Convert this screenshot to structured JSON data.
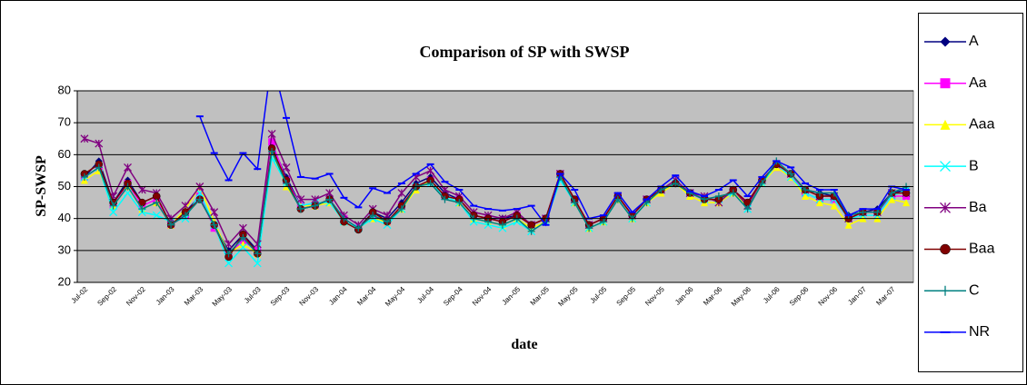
{
  "chart_data": {
    "type": "line",
    "title": "Comparison of SP with SWSP",
    "x_label": "date",
    "y_label": "SP-SWSP",
    "categories": [
      "Jul-02",
      null,
      "Sep-02",
      null,
      "Nov-02",
      null,
      "Jan-03",
      null,
      "Mar-03",
      null,
      "May-03",
      null,
      "Jul-03",
      null,
      "Sep-03",
      null,
      "Nov-03",
      null,
      "Jan-04",
      null,
      "Mar-04",
      null,
      "May-04",
      null,
      "Jul-04",
      null,
      "Sep-04",
      null,
      "Nov-04",
      null,
      "Jan-05",
      null,
      "Mar-05",
      null,
      "May-05",
      null,
      "Jul-05",
      null,
      "Sep-05",
      null,
      "Nov-05",
      null,
      "Jan-06",
      null,
      "Mar-06",
      null,
      "May-06",
      null,
      "Jul-06",
      null,
      "Sep-06",
      null,
      "Nov-06",
      null,
      "Jan-07",
      null,
      "Mar-07",
      null
    ],
    "ylim": [
      20,
      80
    ],
    "yticks": [
      20,
      30,
      40,
      50,
      60,
      70,
      80
    ],
    "grid": true,
    "legend": "right",
    "series": [
      {
        "name": "A",
        "color": "#000080",
        "marker": "diamond",
        "values": [
          53,
          58,
          45,
          52,
          45,
          47,
          38,
          42,
          47,
          38,
          30,
          35,
          30,
          63,
          53,
          44,
          44,
          46,
          40,
          37,
          42,
          40,
          45,
          51,
          53,
          48,
          46,
          41,
          40,
          40,
          41,
          38,
          40,
          54,
          46,
          38,
          40,
          47,
          41,
          46,
          49,
          51,
          48,
          46,
          46,
          49,
          45,
          52,
          57,
          54,
          49,
          48,
          47,
          41,
          42,
          43,
          48,
          49
        ]
      },
      {
        "name": "Aa",
        "color": "#ff00ff",
        "marker": "square",
        "values": [
          53,
          56,
          44,
          51,
          44,
          46,
          38,
          41,
          47,
          37,
          29,
          33,
          30,
          64,
          52,
          44,
          44,
          46,
          40,
          37,
          41,
          39,
          44,
          50,
          52,
          47,
          46,
          41,
          40,
          39,
          41,
          38,
          40,
          54,
          46,
          38,
          40,
          47,
          41,
          46,
          49,
          51,
          48,
          46,
          46,
          49,
          45,
          52,
          56,
          54,
          48,
          46,
          46,
          40,
          42,
          42,
          47,
          47
        ]
      },
      {
        "name": "Aaa",
        "color": "#ffff00",
        "marker": "triangle",
        "values": [
          52,
          55,
          44,
          50,
          43,
          45,
          38,
          43,
          50,
          39,
          29,
          32,
          29,
          61,
          50,
          44,
          44,
          45,
          39,
          37,
          40,
          39,
          43,
          49,
          52,
          47,
          45,
          40,
          39,
          38,
          40,
          37,
          39,
          53,
          45,
          37,
          39,
          46,
          40,
          45,
          48,
          51,
          47,
          45,
          45,
          48,
          44,
          51,
          56,
          53,
          47,
          45,
          44,
          38,
          40,
          40,
          46,
          45
        ]
      },
      {
        "name": "B",
        "color": "#00ffff",
        "marker": "x",
        "values": [
          53,
          56,
          42,
          48,
          42,
          41,
          39,
          40,
          48,
          38,
          26,
          31,
          26,
          59,
          51,
          44,
          45,
          45,
          39,
          37,
          40,
          38,
          43,
          50,
          51,
          47,
          45,
          39,
          38,
          37,
          39,
          36,
          39,
          52,
          45,
          37,
          39,
          46,
          40,
          45,
          49,
          51,
          48,
          46,
          46,
          48,
          43,
          51,
          57,
          53,
          48,
          46,
          46,
          40,
          41,
          41,
          47,
          49
        ]
      },
      {
        "name": "Ba",
        "color": "#800080",
        "marker": "star",
        "values": [
          65,
          63.5,
          47,
          56,
          49,
          48,
          40,
          44,
          50,
          42,
          32,
          37,
          32,
          66.5,
          56,
          46,
          46,
          48,
          41,
          38,
          43,
          41,
          48,
          53,
          55,
          49,
          47,
          42,
          41,
          40,
          42,
          38,
          40,
          54,
          46,
          38,
          40,
          47,
          41,
          46,
          49,
          52,
          48,
          47,
          45,
          49,
          44,
          52,
          57,
          54,
          49,
          47,
          47,
          40,
          42,
          42,
          48,
          48
        ]
      },
      {
        "name": "Baa",
        "color": "#800000",
        "marker": "circle",
        "values": [
          54,
          57,
          45,
          51,
          45,
          47,
          38,
          42,
          46,
          38,
          28,
          35,
          29,
          62,
          52,
          43,
          44,
          46,
          39,
          36.5,
          42,
          39,
          44,
          50,
          52,
          47,
          46,
          41,
          40,
          39,
          41,
          38,
          40,
          54,
          46,
          38,
          40,
          47,
          41,
          46,
          49,
          51,
          48,
          46,
          46,
          49,
          45,
          52,
          57,
          54,
          49,
          47,
          47,
          40,
          42,
          42,
          48,
          48
        ]
      },
      {
        "name": "C",
        "color": "#008080",
        "marker": "plus",
        "values": [
          53,
          56,
          44,
          50,
          43,
          45,
          38,
          41,
          46,
          38,
          29,
          34,
          29,
          61,
          51,
          43,
          44,
          46,
          40,
          37,
          41,
          39,
          43,
          50,
          51,
          46,
          45,
          40,
          39,
          38,
          40,
          36,
          39,
          53,
          45,
          37,
          39,
          46,
          40,
          45,
          49,
          51,
          48,
          46,
          47,
          48,
          43,
          51,
          58,
          54,
          49,
          48,
          48,
          41,
          42,
          42,
          48,
          50
        ]
      },
      {
        "name": "NR",
        "color": "#0000ff",
        "marker": "dash",
        "values": [
          null,
          null,
          null,
          null,
          null,
          null,
          null,
          null,
          72,
          60.5,
          52,
          60.5,
          55.5,
          90,
          71.5,
          53,
          52.5,
          54,
          46.5,
          43.5,
          49.5,
          48,
          51,
          54,
          57,
          51.5,
          49,
          44,
          43,
          42.5,
          43,
          44,
          38,
          54,
          49,
          40,
          41,
          48,
          42,
          46,
          50,
          53.5,
          48.5,
          47,
          49,
          52,
          47,
          53,
          58,
          56,
          51,
          49,
          49,
          41,
          43,
          43,
          50,
          49
        ]
      }
    ]
  }
}
